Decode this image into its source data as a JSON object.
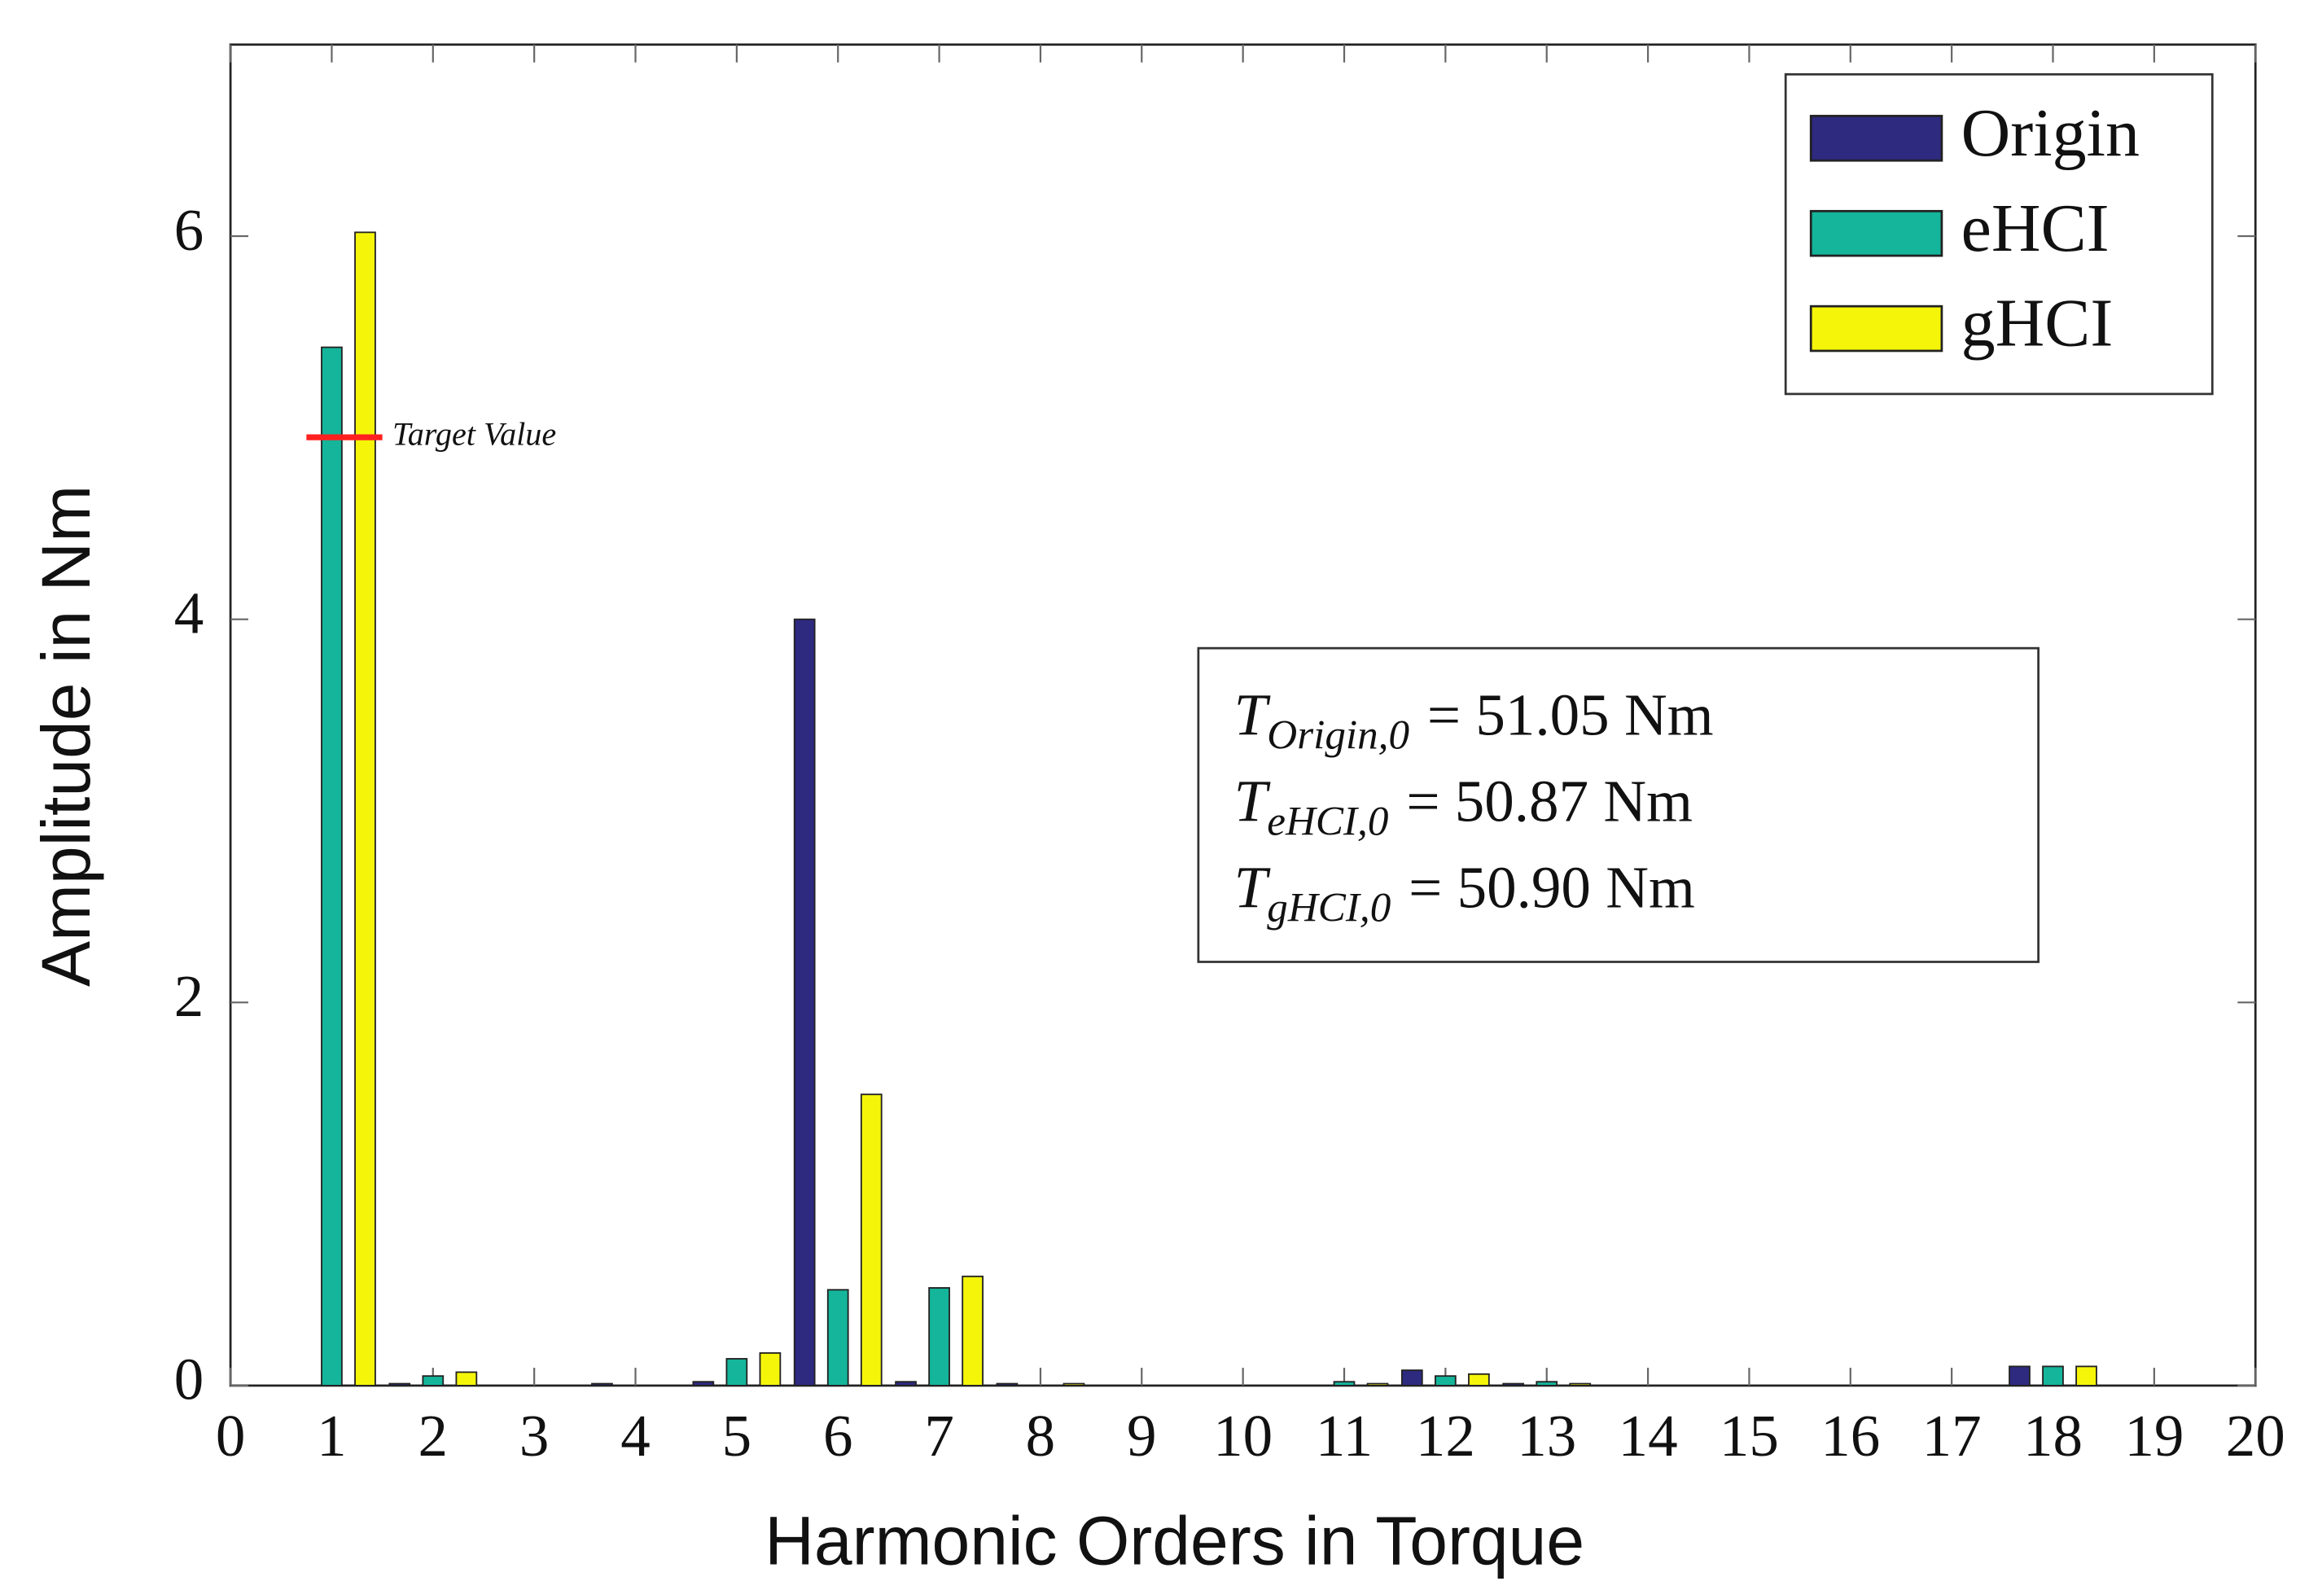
{
  "chart_data": {
    "type": "bar",
    "x_label": "Harmonic Orders in Torque",
    "y_label": "Amplitude in Nm",
    "x": [
      1,
      2,
      3,
      4,
      5,
      6,
      7,
      8,
      9,
      10,
      11,
      12,
      13,
      14,
      15,
      16,
      17,
      18
    ],
    "series": [
      {
        "name": "Origin",
        "color": "#2e2a80",
        "values": [
          0,
          0.01,
          0,
          0.01,
          0.02,
          4.0,
          0.02,
          0.01,
          0,
          0,
          0,
          0.08,
          0.01,
          0,
          0,
          0,
          0,
          0.1
        ]
      },
      {
        "name": "eHCI",
        "color": "#14b59a",
        "values": [
          5.42,
          0.05,
          0,
          0,
          0.14,
          0.5,
          0.51,
          0,
          0,
          0,
          0.02,
          0.05,
          0.02,
          0,
          0,
          0,
          0,
          0.1
        ]
      },
      {
        "name": "gHCI",
        "color": "#f5f50a",
        "values": [
          6.02,
          0.07,
          0,
          0,
          0.17,
          1.52,
          0.57,
          0.01,
          0,
          0,
          0.01,
          0.06,
          0.01,
          0,
          0,
          0,
          0,
          0.1
        ]
      }
    ],
    "xlim": [
      0,
      20
    ],
    "xticks": [
      0,
      1,
      2,
      3,
      4,
      5,
      6,
      7,
      8,
      9,
      10,
      11,
      12,
      13,
      14,
      15,
      16,
      17,
      18,
      19,
      20
    ],
    "ylim": [
      0,
      7
    ],
    "yticks": [
      0,
      2,
      4,
      6
    ],
    "legend": "upper-right",
    "target": {
      "label": "Target Value",
      "value": 4.95,
      "color": "#ff2020"
    },
    "annotations": [
      {
        "symbol": "T",
        "subscript": "Origin,0",
        "text": "= 51.05 Nm"
      },
      {
        "symbol": "T",
        "subscript": "eHCI,0",
        "text": "= 50.87 Nm"
      },
      {
        "symbol": "T",
        "subscript": "gHCI,0",
        "text": "= 50.90 Nm"
      }
    ]
  }
}
